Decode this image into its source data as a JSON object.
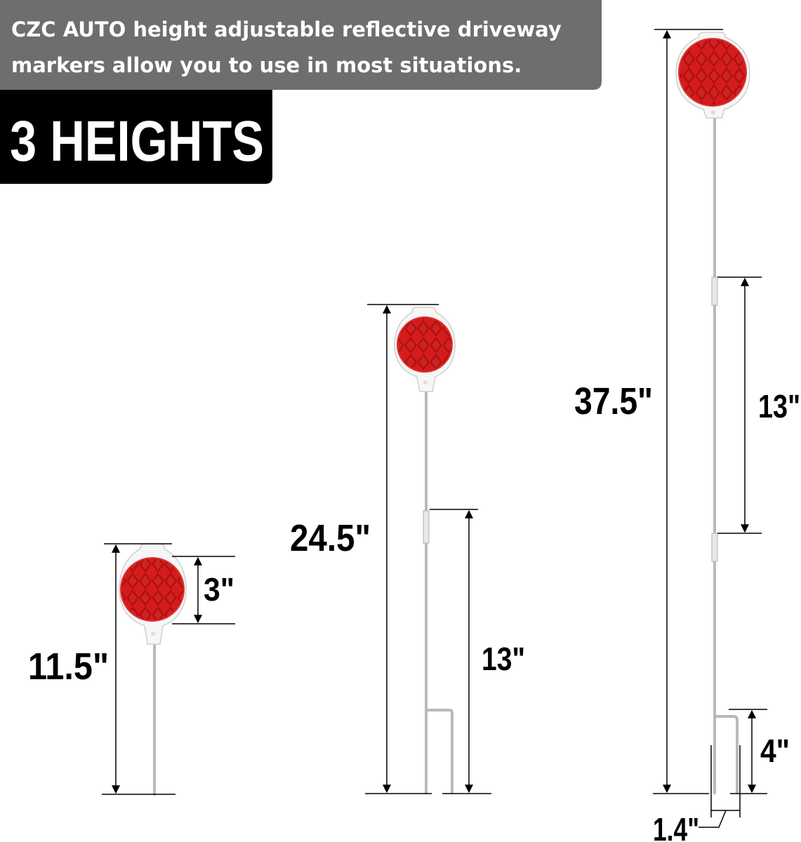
{
  "banner": {
    "line1": "CZC AUTO height adjustable reflective driveway",
    "line2": "markers allow you to use in most situations."
  },
  "title": "3 HEIGHTS",
  "markers": [
    {
      "height_label": "11.5\"",
      "reflector_label": "3\""
    },
    {
      "height_label": "24.5\"",
      "section_label": "13\""
    },
    {
      "height_label": "37.5\"",
      "section_label": "13\"",
      "stake_label": "4\"",
      "width_label": "1.4\""
    }
  ],
  "colors": {
    "banner": "#6e6e6e",
    "title_box": "#000000",
    "reflector": "#d01818"
  }
}
